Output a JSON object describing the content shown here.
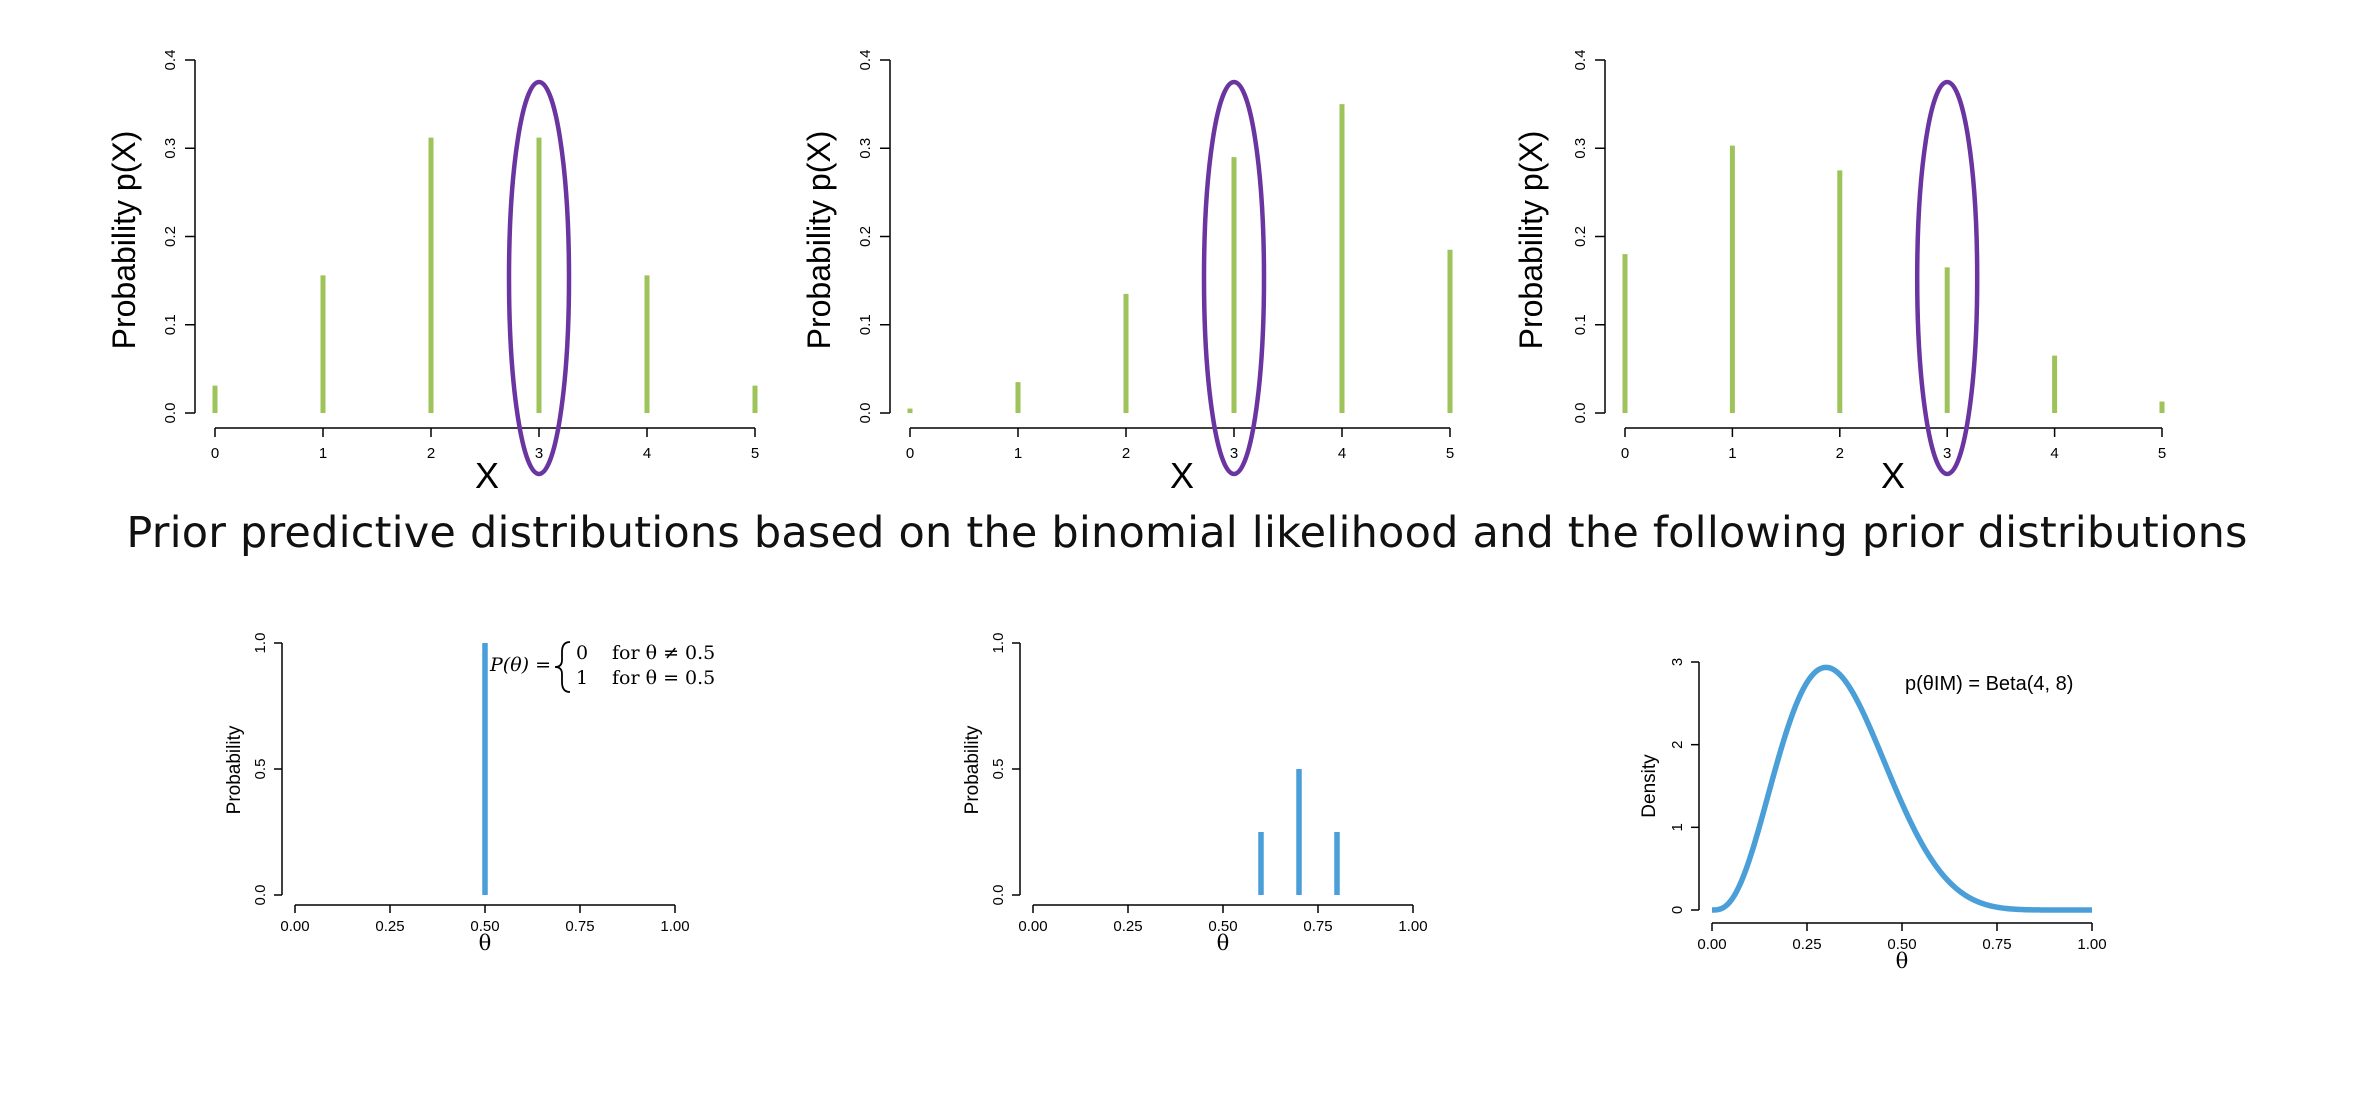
{
  "caption": "Prior predictive distributions based on the binomial likelihood and the following prior distributions",
  "colors": {
    "bar_green": "#9dc35a",
    "ellipse_purple": "#6a35a0",
    "prior_blue": "#4a9fd8"
  },
  "chart_data": [
    {
      "type": "bar",
      "xlabel": "X",
      "ylabel": "Probability p(X)",
      "x": [
        0,
        1,
        2,
        3,
        4,
        5
      ],
      "values": [
        0.031,
        0.156,
        0.312,
        0.312,
        0.156,
        0.031
      ],
      "ylim": [
        0,
        0.4
      ],
      "yticks": [
        "0.0",
        "0.1",
        "0.2",
        "0.3",
        "0.4"
      ],
      "xticks": [
        "0",
        "1",
        "2",
        "3",
        "4",
        "5"
      ],
      "highlight_x": 3
    },
    {
      "type": "bar",
      "xlabel": "X",
      "ylabel": "Probability p(X)",
      "x": [
        0,
        1,
        2,
        3,
        4,
        5
      ],
      "values": [
        0.005,
        0.035,
        0.135,
        0.29,
        0.35,
        0.185
      ],
      "ylim": [
        0,
        0.4
      ],
      "yticks": [
        "0.0",
        "0.1",
        "0.2",
        "0.3",
        "0.4"
      ],
      "xticks": [
        "0",
        "1",
        "2",
        "3",
        "4",
        "5"
      ],
      "highlight_x": 3
    },
    {
      "type": "bar",
      "xlabel": "X",
      "ylabel": "Probability p(X)",
      "x": [
        0,
        1,
        2,
        3,
        4,
        5
      ],
      "values": [
        0.18,
        0.303,
        0.275,
        0.165,
        0.065,
        0.013
      ],
      "ylim": [
        0,
        0.4
      ],
      "yticks": [
        "0.0",
        "0.1",
        "0.2",
        "0.3",
        "0.4"
      ],
      "xticks": [
        "0",
        "1",
        "2",
        "3",
        "4",
        "5"
      ],
      "highlight_x": 3
    },
    {
      "type": "bar",
      "xlabel": "θ",
      "ylabel": "Probability",
      "x": [
        0.5
      ],
      "values": [
        1.0
      ],
      "ylim": [
        0,
        1
      ],
      "xlim": [
        0,
        1
      ],
      "yticks": [
        "0.0",
        "0.5",
        "1.0"
      ],
      "xticks": [
        "0.00",
        "0.25",
        "0.50",
        "0.75",
        "1.00"
      ],
      "annotation": {
        "lhs": "P(θ) =",
        "case1_value": "0",
        "case1_cond": "for θ ≠ 0.5",
        "case2_value": "1",
        "case2_cond": "for θ = 0.5"
      }
    },
    {
      "type": "bar",
      "xlabel": "θ",
      "ylabel": "Probability",
      "x": [
        0.6,
        0.7,
        0.8
      ],
      "values": [
        0.25,
        0.5,
        0.25
      ],
      "ylim": [
        0,
        1
      ],
      "xlim": [
        0,
        1
      ],
      "yticks": [
        "0.0",
        "0.5",
        "1.0"
      ],
      "xticks": [
        "0.00",
        "0.25",
        "0.50",
        "0.75",
        "1.00"
      ]
    },
    {
      "type": "line",
      "xlabel": "θ",
      "ylabel": "Density",
      "distribution": {
        "family": "beta",
        "alpha": 4,
        "beta": 8
      },
      "xlim": [
        0,
        1
      ],
      "ylim": [
        0,
        3
      ],
      "yticks": [
        "0",
        "1",
        "2",
        "3"
      ],
      "xticks": [
        "0.00",
        "0.25",
        "0.50",
        "0.75",
        "1.00"
      ],
      "annotation": "p(θIM) = Beta(4, 8)"
    }
  ]
}
